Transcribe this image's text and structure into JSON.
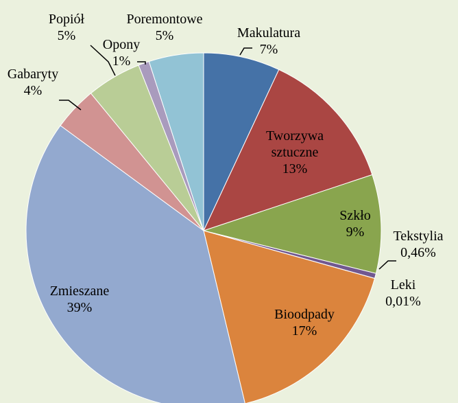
{
  "chart_data": {
    "type": "pie",
    "categories": [
      "Makulatura",
      "Tworzywa sztuczne",
      "Szkło",
      "Tekstylia",
      "Leki",
      "Bioodpady",
      "Zmieszane",
      "Gabaryty",
      "Popiół",
      "Opony",
      "Poremontowe"
    ],
    "values": [
      7,
      13,
      9,
      0.46,
      0.01,
      17,
      39,
      4,
      5,
      1,
      5
    ],
    "value_labels": [
      "7%",
      "13%",
      "9%",
      "0,46%",
      "0,01%",
      "17%",
      "39%",
      "4%",
      "5%",
      "1%",
      "5%"
    ],
    "colors": [
      "#4572a7",
      "#aa4643",
      "#89a54e",
      "#71588f",
      "#4198af",
      "#db843d",
      "#93a9cf",
      "#d19392",
      "#b9cd96",
      "#a99bbd",
      "#92c3d5"
    ]
  }
}
